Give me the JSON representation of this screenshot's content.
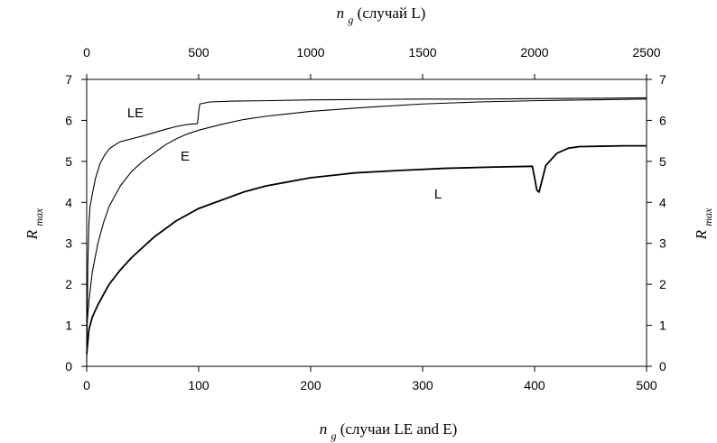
{
  "chart_data": {
    "type": "line",
    "x_bottom": {
      "label_var": "n",
      "label_sub": "g",
      "label_rest": " (случаи LE and E)",
      "range": [
        0,
        500
      ],
      "ticks": [
        0,
        100,
        200,
        300,
        400,
        500
      ]
    },
    "x_top": {
      "label_var": "n",
      "label_sub": "g",
      "label_rest": " (случай L)",
      "range": [
        0,
        2500
      ],
      "ticks": [
        0,
        500,
        1000,
        1500,
        2000,
        2500
      ]
    },
    "y_left": {
      "label_var": "R",
      "label_sub": "max",
      "range": [
        0,
        7
      ],
      "ticks": [
        0,
        1,
        2,
        3,
        4,
        5,
        6,
        7
      ]
    },
    "y_right": {
      "label_var": "R",
      "label_sub": "max",
      "range": [
        0,
        7
      ],
      "ticks": [
        0,
        1,
        2,
        3,
        4,
        5,
        6,
        7
      ]
    },
    "grid": false,
    "series": [
      {
        "name": "LE",
        "axis": "bottom",
        "x": [
          0,
          1,
          2,
          3,
          5,
          8,
          12,
          16,
          20,
          25,
          30,
          40,
          50,
          60,
          70,
          80,
          90,
          99,
          100,
          101,
          110,
          130,
          160,
          200,
          250,
          300,
          350,
          400,
          450,
          500
        ],
        "y": [
          0.1,
          2.5,
          3.5,
          3.9,
          4.2,
          4.6,
          4.95,
          5.15,
          5.3,
          5.4,
          5.48,
          5.55,
          5.62,
          5.7,
          5.78,
          5.85,
          5.9,
          5.92,
          6.2,
          6.4,
          6.45,
          6.47,
          6.48,
          6.5,
          6.51,
          6.52,
          6.52,
          6.53,
          6.54,
          6.55
        ]
      },
      {
        "name": "E",
        "axis": "bottom",
        "x": [
          0,
          2,
          5,
          10,
          15,
          20,
          30,
          40,
          50,
          60,
          70,
          80,
          90,
          100,
          120,
          140,
          160,
          200,
          250,
          300,
          350,
          400,
          450,
          500
        ],
        "y": [
          0.9,
          1.6,
          2.3,
          3.0,
          3.5,
          3.9,
          4.4,
          4.75,
          5.0,
          5.2,
          5.4,
          5.55,
          5.67,
          5.76,
          5.9,
          6.02,
          6.1,
          6.22,
          6.32,
          6.4,
          6.45,
          6.48,
          6.5,
          6.52
        ]
      },
      {
        "name": "L",
        "axis": "top",
        "x": [
          0,
          10,
          25,
          50,
          100,
          150,
          200,
          300,
          400,
          500,
          600,
          700,
          800,
          900,
          1000,
          1200,
          1400,
          1600,
          1800,
          1990,
          2000,
          2010,
          2020,
          2050,
          2100,
          2150,
          2200,
          2300,
          2400,
          2500
        ],
        "y": [
          0.3,
          0.9,
          1.2,
          1.5,
          2.0,
          2.35,
          2.65,
          3.15,
          3.55,
          3.85,
          4.05,
          4.25,
          4.4,
          4.5,
          4.6,
          4.72,
          4.78,
          4.83,
          4.86,
          4.88,
          4.6,
          4.3,
          4.25,
          4.9,
          5.2,
          5.32,
          5.36,
          5.37,
          5.38,
          5.38
        ]
      }
    ]
  }
}
